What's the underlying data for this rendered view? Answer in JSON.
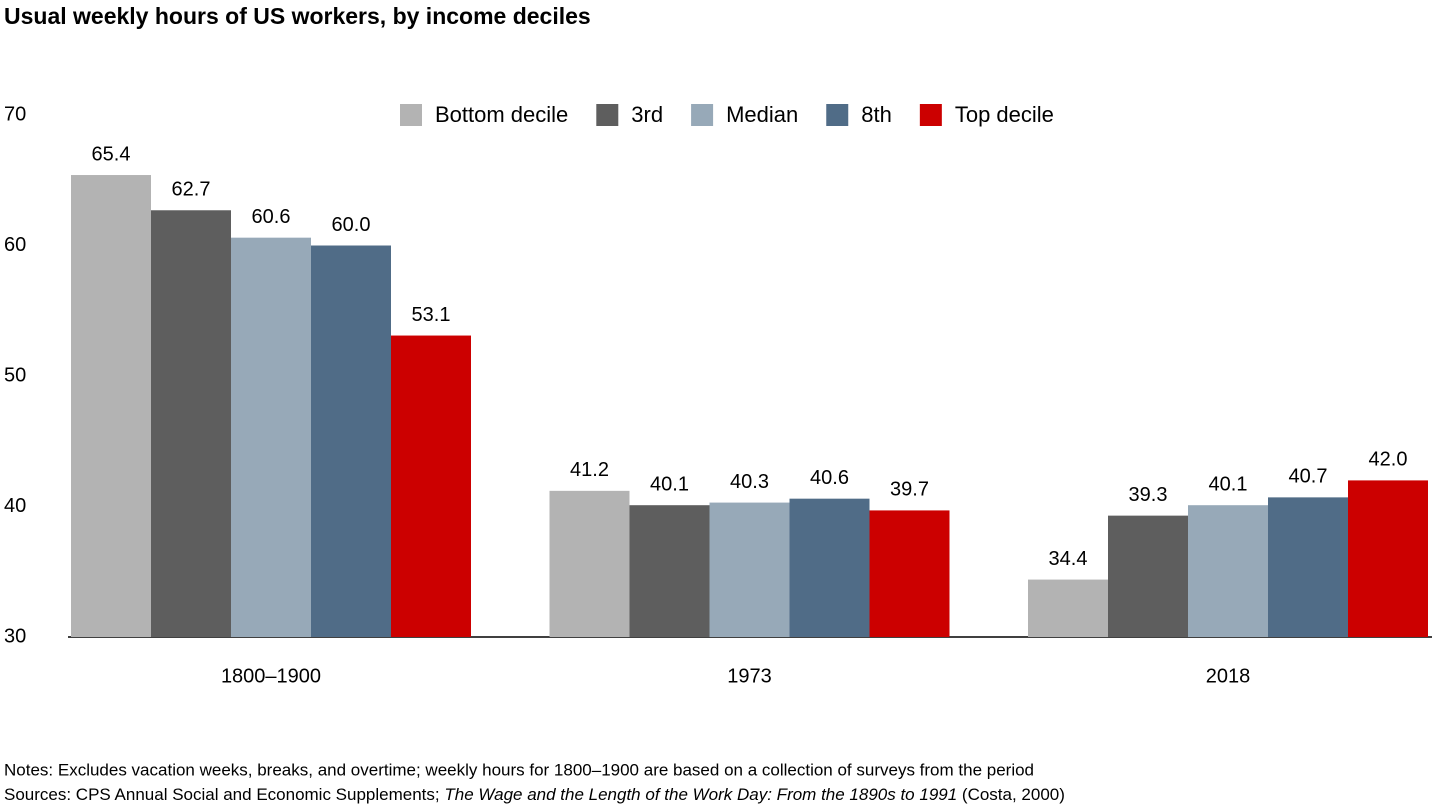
{
  "chart_data": {
    "type": "bar",
    "title": "Usual weekly hours of US workers, by income deciles",
    "categories": [
      "1800–1900",
      "1973",
      "2018"
    ],
    "series": [
      {
        "name": "Bottom decile",
        "color": "#b3b3b3",
        "values": [
          65.4,
          41.2,
          34.4
        ],
        "value_labels": [
          "65.4",
          "41.2",
          "34.4"
        ]
      },
      {
        "name": "3rd",
        "color": "#5e5e5e",
        "values": [
          62.7,
          40.1,
          39.3
        ],
        "value_labels": [
          "62.7",
          "40.1",
          "39.3"
        ]
      },
      {
        "name": "Median",
        "color": "#97a9b8",
        "values": [
          60.6,
          40.3,
          40.1
        ],
        "value_labels": [
          "60.6",
          "40.3",
          "40.1"
        ]
      },
      {
        "name": "8th",
        "color": "#506c87",
        "values": [
          60.0,
          40.6,
          40.7
        ],
        "value_labels": [
          "60.0",
          "40.6",
          "40.7"
        ]
      },
      {
        "name": "Top decile",
        "color": "#cc0000",
        "values": [
          53.1,
          39.7,
          42.0
        ],
        "value_labels": [
          "53.1",
          "39.7",
          "42.0"
        ]
      }
    ],
    "ylim": [
      30,
      70
    ],
    "yticks": [
      30,
      40,
      50,
      60,
      70
    ],
    "grid": false,
    "legend": "top",
    "notes": {
      "note": "Notes: Excludes vacation weeks, breaks, and overtime; weekly hours for 1800–1900 are based on a collection of surveys from the period",
      "sources": [
        "Sources: CPS Annual Social and Economic Supplements; ",
        "The Wage and the Length of the Work Day: From the 1890s to 1991",
        " (Costa, 2000)"
      ]
    }
  }
}
